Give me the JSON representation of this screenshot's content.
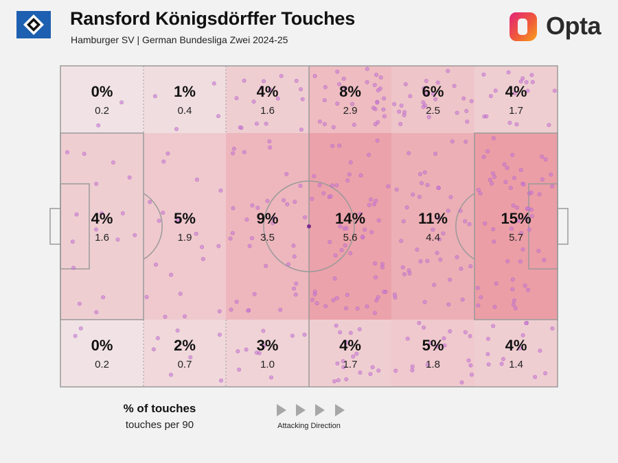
{
  "header": {
    "title": "Ransford Königsdörffer Touches",
    "subtitle": "Hamburger SV | German Bundesliga Zwei 2024-25",
    "brand": "Opta",
    "crest_icon": "diamond-crest-icon"
  },
  "legend": {
    "primary": "% of touches",
    "secondary": "touches per 90",
    "direction_label": "Attacking Direction",
    "direction_icon": "play-arrow-icon"
  },
  "colors": {
    "background": "#f3f2f2",
    "zone_low": "#f1e3e5",
    "zone_high": "#eb9ea6",
    "dot": "#c879d6",
    "dot_stroke": "#a857b8",
    "pitch_line": "#9a9a9a"
  },
  "chart_data": {
    "type": "heatmap",
    "title": "Ransford Königsdörffer Touches",
    "subtitle": "Hamburger SV | German Bundesliga Zwei 2024-25",
    "columns": [
      "1",
      "2",
      "3",
      "4",
      "5",
      "6"
    ],
    "rows": [
      "top",
      "middle",
      "bottom"
    ],
    "percent_labels": [
      [
        "0%",
        "1%",
        "4%",
        "8%",
        "6%",
        "4%"
      ],
      [
        "4%",
        "5%",
        "9%",
        "14%",
        "11%",
        "15%"
      ],
      [
        "0%",
        "2%",
        "3%",
        "4%",
        "5%",
        "4%"
      ]
    ],
    "percent": [
      [
        0,
        1,
        4,
        8,
        6,
        4
      ],
      [
        4,
        5,
        9,
        14,
        11,
        15
      ],
      [
        0,
        2,
        3,
        4,
        5,
        4
      ]
    ],
    "per90_labels": [
      [
        "0.2",
        "0.4",
        "1.6",
        "2.9",
        "2.5",
        "1.7"
      ],
      [
        "1.6",
        "1.9",
        "3.5",
        "5.6",
        "4.4",
        "5.7"
      ],
      [
        "0.2",
        "0.7",
        "1.0",
        "1.7",
        "1.8",
        "1.4"
      ]
    ],
    "attacking_direction": "left-to-right"
  }
}
